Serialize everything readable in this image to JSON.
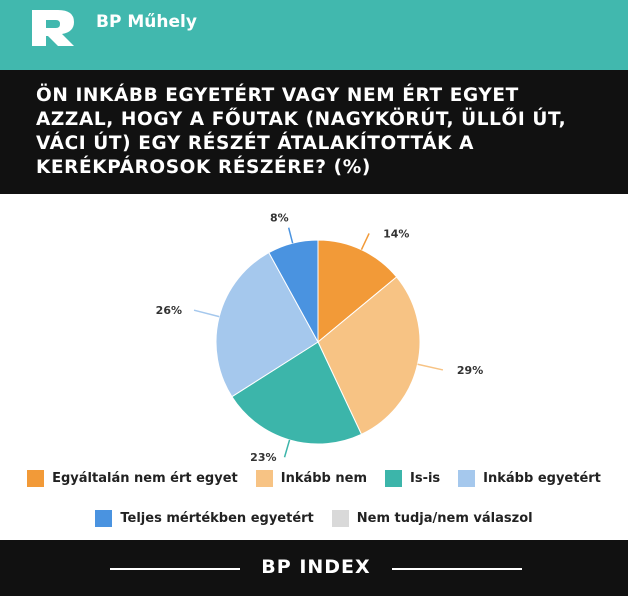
{
  "brand": {
    "name": "BP Műhely",
    "logo_icon": "bp-logo-icon"
  },
  "chart_data": {
    "type": "pie",
    "title": "ÖN INKÁBB EGYETÉRT VAGY NEM ÉRT EGYET AZZAL, HOGY A FŐUTAK (NAGYKÖRÚT, ÜLLŐI ÚT, VÁCI ÚT) EGY RÉSZÉT ÁTALAKÍTOTTÁK A KERÉKPÁROSOK RÉSZÉRE? (%)",
    "slices": [
      {
        "label": "Egyáltalán nem ért egyet",
        "value": 14,
        "value_label": "14%",
        "color": "#f29a38"
      },
      {
        "label": "Inkább nem",
        "value": 29,
        "value_label": "29%",
        "color": "#f7c384"
      },
      {
        "label": "Is-is",
        "value": 23,
        "value_label": "23%",
        "color": "#3cb5aa"
      },
      {
        "label": "Inkább egyetért",
        "value": 26,
        "value_label": "26%",
        "color": "#a5c8ed"
      },
      {
        "label": "Teljes mértékben egyetért",
        "value": 8,
        "value_label": "8%",
        "color": "#4a93e0"
      },
      {
        "label": "Nem tudja/nem válaszol",
        "value": 0,
        "value_label": "",
        "color": "#d9d9d9"
      }
    ],
    "legend_position": "bottom"
  },
  "footer": {
    "text": "BP INDEX"
  }
}
